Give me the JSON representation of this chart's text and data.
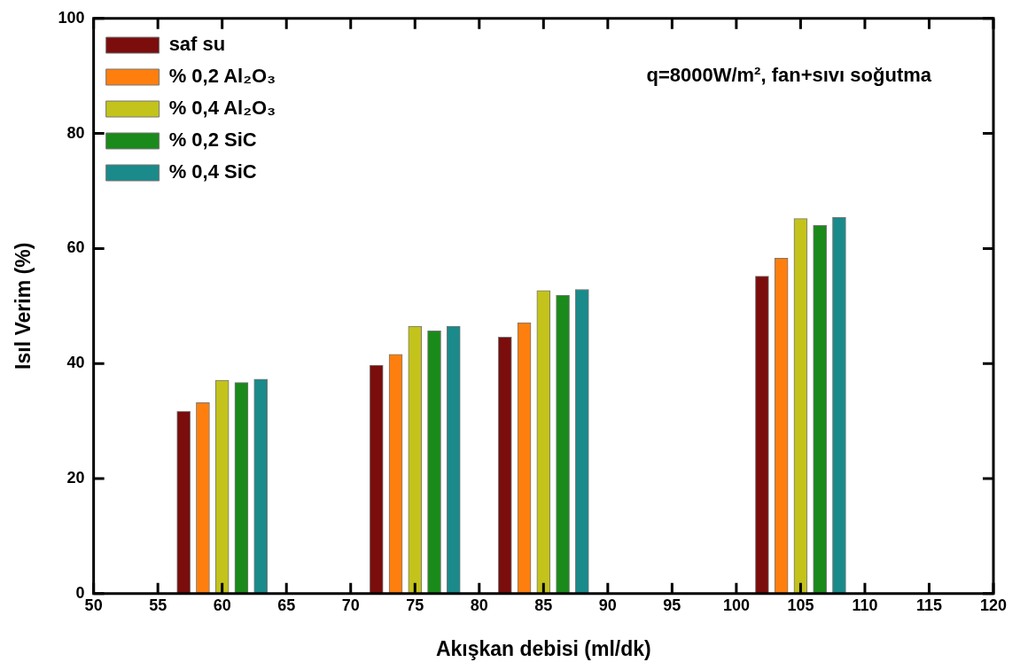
{
  "chart_data": {
    "type": "bar",
    "xlabel": "Akışkan debisi (ml/dk)",
    "ylabel": "Isıl Verim (%)",
    "annotations": [
      "q=8000W/m², fan+sıvı soğutma"
    ],
    "xlim": [
      50,
      120
    ],
    "xticks": [
      50,
      55,
      60,
      65,
      70,
      75,
      80,
      85,
      90,
      95,
      100,
      105,
      110,
      115,
      120
    ],
    "ylim": [
      0,
      100
    ],
    "yticks": [
      0,
      20,
      40,
      60,
      80,
      100
    ],
    "grid": false,
    "legend": "top left",
    "series": [
      {
        "name": "saf su",
        "color": "#7b0d0d",
        "x": [
          57,
          72,
          82,
          102
        ],
        "values": [
          31.7,
          39.7,
          44.6,
          55.2
        ]
      },
      {
        "name": "% 0,2 Al₂O₃",
        "color": "#ff7f0e",
        "x": [
          58.5,
          73.5,
          83.5,
          103.5
        ],
        "values": [
          33.2,
          41.6,
          47.1,
          58.3
        ]
      },
      {
        "name": "% 0,4 Al₂O₃",
        "color": "#c3c31c",
        "x": [
          60,
          75,
          85,
          105
        ],
        "values": [
          37.1,
          46.5,
          52.7,
          65.2
        ]
      },
      {
        "name": "% 0,2 SiC",
        "color": "#1a8a1a",
        "x": [
          61.5,
          76.5,
          86.5,
          106.5
        ],
        "values": [
          36.7,
          45.7,
          51.9,
          64.0
        ]
      },
      {
        "name": "% 0,4 SiC",
        "color": "#1a8a8a",
        "x": [
          63,
          78,
          88,
          108
        ],
        "values": [
          37.3,
          46.5,
          52.9,
          65.4
        ]
      }
    ]
  }
}
